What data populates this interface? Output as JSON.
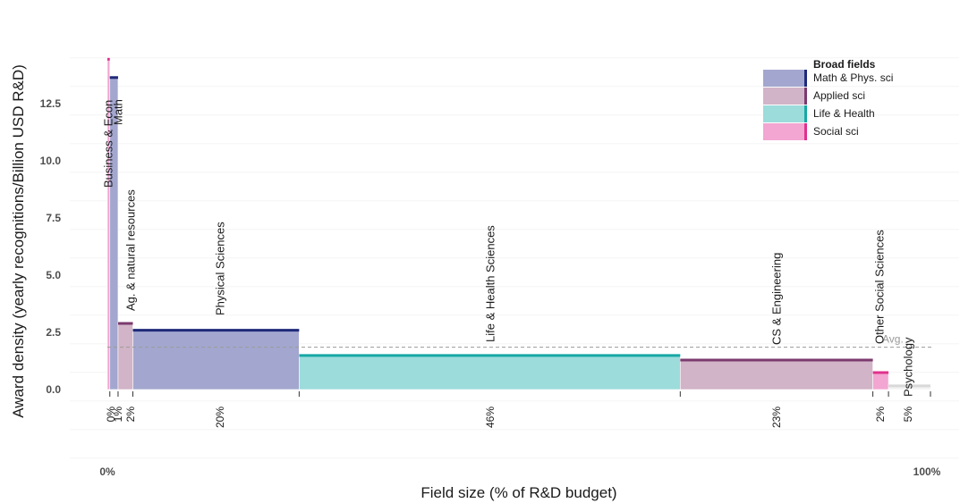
{
  "chart_data": {
    "type": "bar",
    "subtype": "variable-width (marimekko)",
    "xlabel": "Field size (% of R&D budget)",
    "ylabel": "Award density (yearly recognitions/Billion USD R&D)",
    "x_tick_labels": [
      "0%",
      "100%"
    ],
    "xlim": [
      0,
      100
    ],
    "ylim": [
      -3.0,
      15.0
    ],
    "y_ticks": [
      0.0,
      2.5,
      5.0,
      7.5,
      10.0,
      12.5
    ],
    "y_tick_labels": [
      "0.0",
      "2.5",
      "5.0",
      "7.5",
      "10.0",
      "12.5"
    ],
    "grid": true,
    "average": {
      "label": "Avg.",
      "value": 1.85
    },
    "legend": {
      "title": "Broad fields",
      "position": "top-right",
      "items": [
        {
          "key": "math",
          "label": "Math & Phys. sci",
          "fill": "#a3a7cf",
          "edge": "#1f2a7a"
        },
        {
          "key": "applied",
          "label": "Applied sci",
          "fill": "#d1b4c7",
          "edge": "#7b3a6e"
        },
        {
          "key": "life",
          "label": "Life & Health",
          "fill": "#9cdcdb",
          "edge": "#16a8a5"
        },
        {
          "key": "social",
          "label": "Social sci",
          "fill": "#f2a6d1",
          "edge": "#e0318c"
        }
      ]
    },
    "bars": [
      {
        "label": "Business & Econ",
        "group": "social",
        "width_pct": 0.3,
        "value": 14.5,
        "pct_label": "0%"
      },
      {
        "label": "Math",
        "group": "math",
        "width_pct": 1.0,
        "value": 13.7,
        "pct_label": "1%"
      },
      {
        "label": "Ag. & natural resources",
        "group": "applied",
        "width_pct": 1.8,
        "value": 2.95,
        "pct_label": "2%"
      },
      {
        "label": "Physical Sciences",
        "group": "math",
        "width_pct": 20.2,
        "value": 2.65,
        "pct_label": "20%"
      },
      {
        "label": "Life & Health Sciences",
        "group": "life",
        "width_pct": 46.3,
        "value": 1.55,
        "pct_label": "46%"
      },
      {
        "label": "CS & Engineering",
        "group": "applied",
        "width_pct": 23.4,
        "value": 1.35,
        "pct_label": "23%"
      },
      {
        "label": "Other Social Sciences",
        "group": "social",
        "width_pct": 1.9,
        "value": 0.8,
        "pct_label": "2%"
      },
      {
        "label": "Psychology",
        "group": "other",
        "width_pct": 5.1,
        "value": 0.22,
        "pct_label": "5%"
      }
    ],
    "other_group_style": {
      "fill": "#f2f2f2",
      "edge": "#d9d9d9"
    }
  }
}
